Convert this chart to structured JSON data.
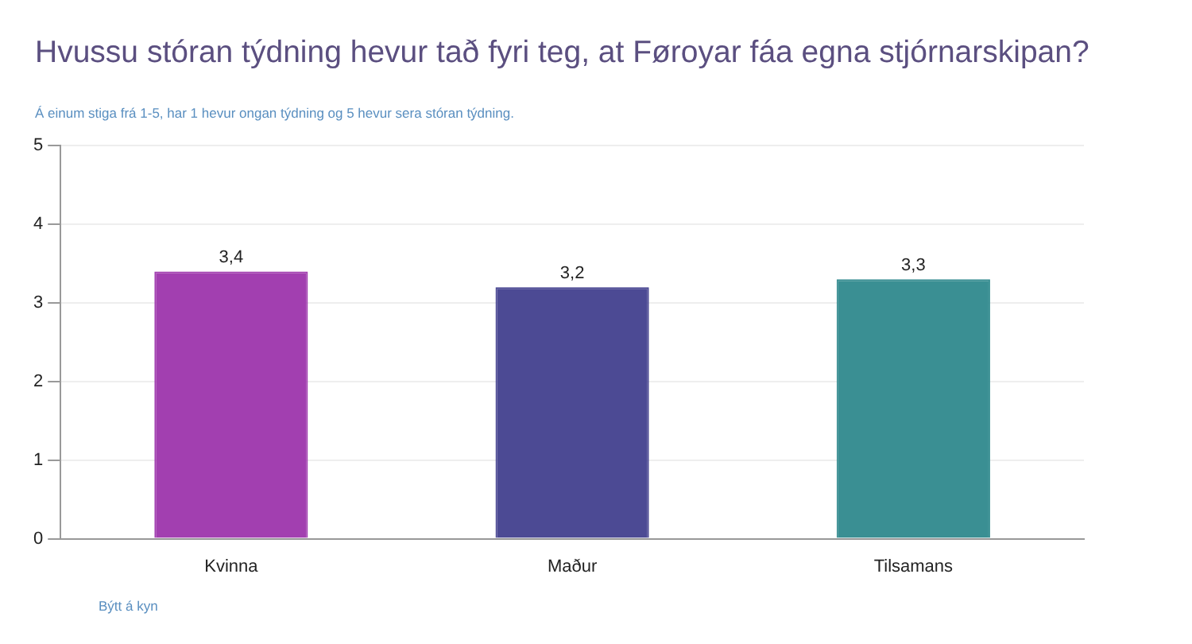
{
  "chart_data": {
    "type": "bar",
    "title": "Hvussu stóran týdning hevur tað fyri teg, at Føroyar fáa egna stjórnarskipan?",
    "subtitle": "Á einum stiga frá 1-5, har 1 hevur ongan týdning og 5 hevur sera stóran týdning.",
    "annotations": [
      "Býtt á kyn"
    ],
    "categories": [
      "Kvinna",
      "Maður",
      "Tilsamans"
    ],
    "values": [
      3.4,
      3.2,
      3.3
    ],
    "value_labels": [
      "3,4",
      "3,2",
      "3,3"
    ],
    "colors": [
      "#a23fb0",
      "#4c4a94",
      "#3a8f93"
    ],
    "ylim": [
      0,
      5
    ],
    "yticks": [
      0,
      1,
      2,
      3,
      4,
      5
    ],
    "grid": "y",
    "legend": false
  }
}
